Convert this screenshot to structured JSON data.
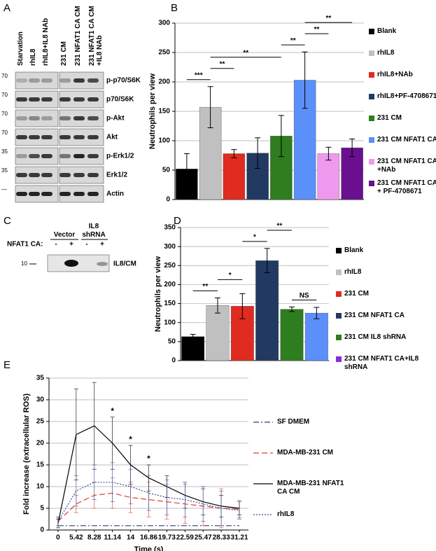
{
  "panel_labels": [
    "A",
    "B",
    "C",
    "D",
    "E"
  ],
  "blot_a": {
    "columns": [
      "Starvation",
      "rhIL8",
      "rhIL8+IL8 NAb",
      "231 CM",
      "231 NFAT1 CA CM",
      "231 NFAT1 CA CM +IL8 NAb"
    ],
    "rows": [
      {
        "label": "p-p70/S6K",
        "marker": "70"
      },
      {
        "label": "p70/S6K",
        "marker": "70"
      },
      {
        "label": "p-Akt",
        "marker": "70"
      },
      {
        "label": "Akt",
        "marker": "70"
      },
      {
        "label": "p-Erk1/2",
        "marker": "35"
      },
      {
        "label": "Erk1/2",
        "marker": "35"
      },
      {
        "label": "Actin",
        "marker": "—"
      }
    ]
  },
  "blot_c": {
    "groups": [
      "Vector",
      "IL8 shRNA"
    ],
    "row_label": "NFAT1 CA:",
    "signs": [
      "-",
      "+",
      "-",
      "+"
    ],
    "marker": "10",
    "band_label": "IL8/CM"
  },
  "chart_data": [
    {
      "type": "bar",
      "y_label": "Neutrophils per view",
      "categories": [
        "Blank",
        "rhIL8",
        "rhIL8+NAb",
        "rhIL8+PF-4708671",
        "231 CM",
        "231 CM NFAT1 CA",
        "231 CM NFAT1 CA +NAb",
        "231 CM NFAT1 CA + PF-4708671"
      ],
      "values": [
        52,
        157,
        78,
        79,
        108,
        203,
        78,
        88
      ],
      "errors": [
        26,
        35,
        7,
        26,
        35,
        48,
        11,
        15
      ],
      "colors": [
        "#000000",
        "#c0c0c0",
        "#e02b20",
        "#223a62",
        "#2e7d1e",
        "#5b8ff9",
        "#ee99ee",
        "#6a0f8e"
      ],
      "ylim": [
        0,
        300
      ],
      "yticks": [
        0,
        50,
        100,
        150,
        200,
        250,
        300
      ],
      "grid": true,
      "legend": "right",
      "annotations": [
        {
          "text": "***",
          "from": 0,
          "to": 1
        },
        {
          "text": "**",
          "from": 1,
          "to": 2
        },
        {
          "text": "**",
          "from": 1,
          "to": 4
        },
        {
          "text": "**",
          "from": 4,
          "to": 5
        },
        {
          "text": "**",
          "from": 5,
          "to": 6
        },
        {
          "text": "**",
          "from": 5,
          "to": 7
        }
      ]
    },
    {
      "type": "bar",
      "y_label": "Neutrophils per view",
      "categories": [
        "Blank",
        "rhIL8",
        "231 CM",
        "231 CM NFAT1 CA",
        "231 CM IL8 shRNA",
        "231 CM NFAT1 CA+IL8 shRNA"
      ],
      "values": [
        63,
        145,
        143,
        263,
        135,
        125
      ],
      "errors": [
        6,
        20,
        33,
        32,
        6,
        15
      ],
      "colors": [
        "#000000",
        "#c0c0c0",
        "#e02b20",
        "#223a62",
        "#2e7d1e",
        "#5b8ff9"
      ],
      "legend_colors": [
        "#000000",
        "#c0c0c0",
        "#e02b20",
        "#223a62",
        "#2e7d1e",
        "#8a2be2"
      ],
      "ylim": [
        0,
        350
      ],
      "yticks": [
        0,
        50,
        100,
        150,
        200,
        250,
        300,
        350
      ],
      "grid": true,
      "legend": "right",
      "annotations": [
        {
          "text": "**",
          "from": 0,
          "to": 1
        },
        {
          "text": "*",
          "from": 1,
          "to": 2
        },
        {
          "text": "*",
          "from": 2,
          "to": 3
        },
        {
          "text": "**",
          "from": 3,
          "to": 4
        },
        {
          "text": "NS",
          "from": 4,
          "to": 5
        }
      ]
    },
    {
      "type": "line",
      "x_label": "Time (s)",
      "y_label": "Fold increase (extracellular ROS)",
      "categories": [
        "0",
        "5.42",
        "8.28",
        "11.14",
        "14",
        "16.86",
        "19.73",
        "22.59",
        "25.47",
        "28.33",
        "31.21"
      ],
      "series": [
        {
          "name": "SF DMEM",
          "color": "#2f3e6e",
          "dash": "dash-dot",
          "values": [
            1,
            1,
            1,
            1,
            1,
            1,
            1,
            1,
            1,
            1,
            1
          ]
        },
        {
          "name": "MDA-MB-231 CM",
          "color": "#e03c31",
          "dash": "dashed",
          "values": [
            2,
            6,
            8,
            8.5,
            7.5,
            7,
            6.5,
            6,
            5.5,
            5,
            4.8
          ],
          "errors": [
            1,
            2,
            3,
            3.5,
            3.5,
            4,
            4,
            4.5,
            4.5,
            4.5,
            2
          ]
        },
        {
          "name": "MDA-MB-231 NFAT1 CA CM",
          "color": "#000000",
          "dash": "solid",
          "values": [
            1.5,
            22,
            24,
            20,
            15,
            12,
            10,
            8,
            6.5,
            5.5,
            5
          ],
          "errors": [
            1,
            10.5,
            10,
            6,
            4.5,
            3,
            2.5,
            3,
            3,
            2.5,
            1.5
          ]
        },
        {
          "name": "rhIL8",
          "color": "#3b4c9a",
          "dash": "dotted",
          "values": [
            2,
            9,
            11,
            11,
            10,
            8.5,
            7.5,
            7,
            6,
            5,
            4.5
          ],
          "errors": [
            1,
            3.5,
            4,
            4.5,
            4,
            4,
            4,
            4,
            4,
            4,
            2
          ]
        }
      ],
      "ylim": [
        0,
        35
      ],
      "yticks": [
        0,
        5,
        10,
        15,
        20,
        25,
        30,
        35
      ],
      "grid": true,
      "legend": "right",
      "annotations": [
        {
          "text": "*",
          "at": 3
        },
        {
          "text": "*",
          "at": 4
        },
        {
          "text": "*",
          "at": 5
        }
      ]
    }
  ]
}
